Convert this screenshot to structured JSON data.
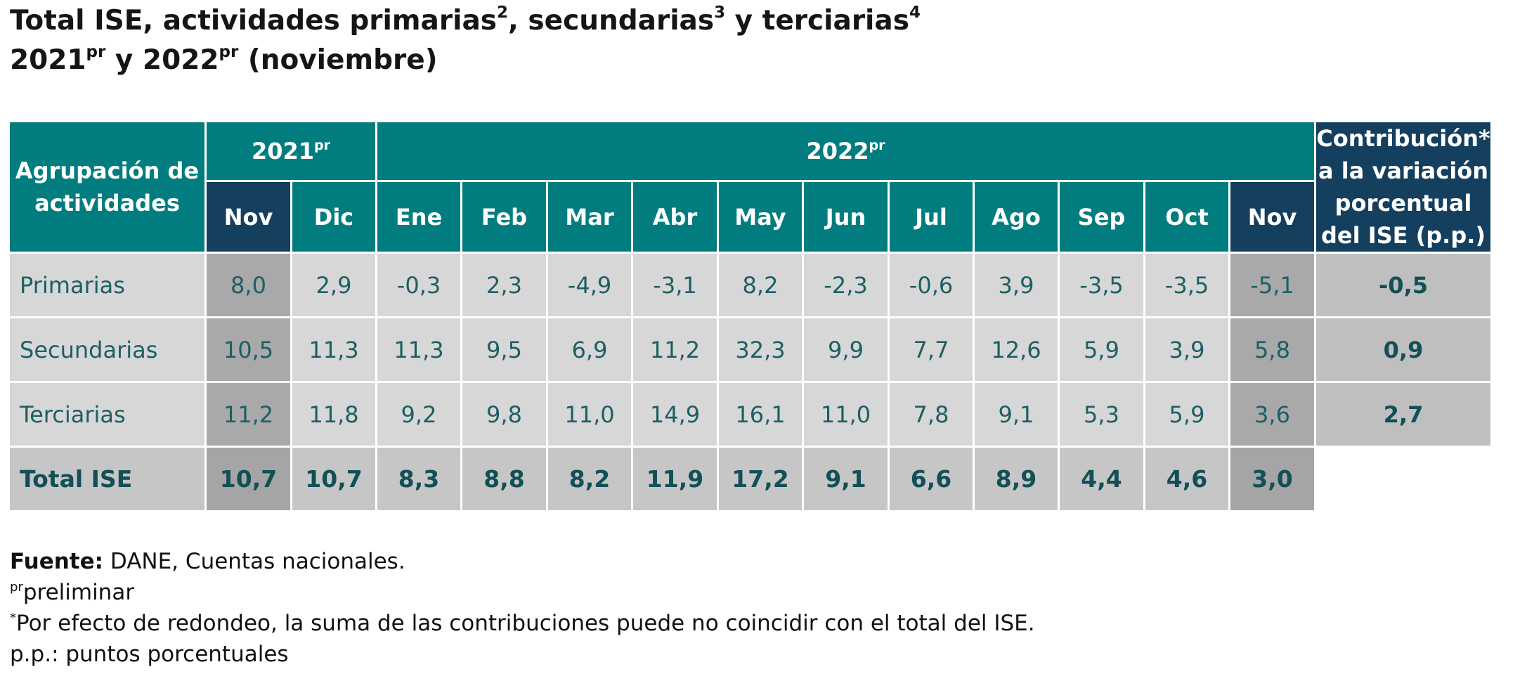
{
  "title": {
    "line1_part1": "Total ISE, actividades primarias",
    "line1_sup1": "2",
    "line1_part2": ", secundarias",
    "line1_sup2": "3",
    "line1_part3": " y terciarias",
    "line1_sup3": "4",
    "line2_year1": "2021",
    "line2_sup1": "pr",
    "line2_mid": " y 2022",
    "line2_sup2": "pr",
    "line2_end": " (noviembre)"
  },
  "table": {
    "group_header": "Agrupación de actividades",
    "year1": "2021",
    "year1_sup": "pr",
    "year2": "2022",
    "year2_sup": "pr",
    "contrib_header": "Contribución* a la variación porcentual del ISE (p.p.)",
    "months": [
      "Nov",
      "Dic",
      "Ene",
      "Feb",
      "Mar",
      "Abr",
      "May",
      "Jun",
      "Jul",
      "Ago",
      "Sep",
      "Oct",
      "Nov"
    ],
    "rows": [
      {
        "label": "Primarias",
        "values": [
          "8,0",
          "2,9",
          "-0,3",
          "2,3",
          "-4,9",
          "-3,1",
          "8,2",
          "-2,3",
          "-0,6",
          "3,9",
          "-3,5",
          "-3,5",
          "-5,1"
        ],
        "contrib": "-0,5"
      },
      {
        "label": "Secundarias",
        "values": [
          "10,5",
          "11,3",
          "11,3",
          "9,5",
          "6,9",
          "11,2",
          "32,3",
          "9,9",
          "7,7",
          "12,6",
          "5,9",
          "3,9",
          "5,8"
        ],
        "contrib": "0,9"
      },
      {
        "label": "Terciarias",
        "values": [
          "11,2",
          "11,8",
          "9,2",
          "9,8",
          "11,0",
          "14,9",
          "16,1",
          "11,0",
          "7,8",
          "9,1",
          "5,3",
          "5,9",
          "3,6"
        ],
        "contrib": "2,7"
      }
    ],
    "total": {
      "label": "Total ISE",
      "values": [
        "10,7",
        "10,7",
        "8,3",
        "8,8",
        "8,2",
        "11,9",
        "17,2",
        "9,1",
        "6,6",
        "8,9",
        "4,4",
        "4,6",
        "3,0"
      ]
    }
  },
  "notes": {
    "source_label": "Fuente:",
    "source_text": " DANE, Cuentas nacionales.",
    "pr_sup": "pr",
    "pr_text": "preliminar",
    "star_sup": "*",
    "star_text": "Por efecto de redondeo, la suma de las contribuciones puede no coincidir con el total del ISE.",
    "pp_text": "p.p.: puntos porcentuales"
  },
  "colors": {
    "header_teal": "#027d7f",
    "header_dark": "#153f5f",
    "cell_light": "#d7d7d7",
    "cell_highlight": "#a9a9a9",
    "text_teal": "#1d5f62"
  }
}
